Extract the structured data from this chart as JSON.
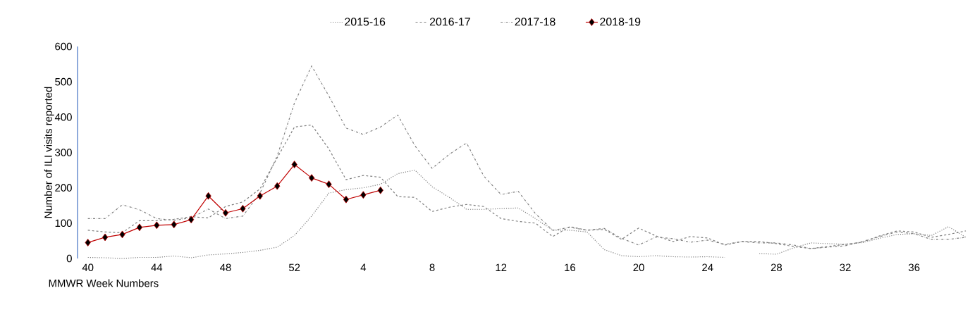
{
  "chart_data": {
    "type": "line",
    "xlabel": "MMWR Week Numbers",
    "ylabel": "Number of ILI visits reported",
    "categories": [
      "40",
      null,
      null,
      null,
      "44",
      null,
      null,
      null,
      "48",
      null,
      null,
      null,
      "52",
      null,
      null,
      null,
      "4",
      null,
      null,
      null,
      "8",
      null,
      null,
      null,
      "12",
      null,
      null,
      null,
      "16",
      null,
      null,
      null,
      "20",
      null,
      null,
      null,
      "24",
      null,
      null,
      null,
      "28",
      null,
      null,
      null,
      "32",
      null,
      null,
      null,
      "36",
      null,
      null,
      null
    ],
    "ylim": [
      0,
      600
    ],
    "yticks": [
      0,
      100,
      200,
      300,
      400,
      500,
      600
    ],
    "grid": false,
    "legend": "top",
    "series": [
      {
        "name": "2015-16",
        "color": "#7f7f7f",
        "line_style": "dotted",
        "marker": "none",
        "values": [
          3,
          2,
          0,
          3,
          3,
          7,
          2,
          10,
          13,
          17,
          23,
          32,
          65,
          120,
          185,
          195,
          200,
          210,
          240,
          250,
          203,
          173,
          139,
          139,
          141,
          143,
          113,
          80,
          80,
          75,
          25,
          8,
          5,
          8,
          5,
          4,
          5,
          3,
          null,
          14,
          12,
          30,
          44,
          42,
          40,
          45,
          57,
          68,
          70,
          65,
          90,
          60
        ]
      },
      {
        "name": "2016-17",
        "color": "#7f7f7f",
        "line_style": "dashed",
        "marker": "none",
        "values": [
          80,
          75,
          73,
          107,
          107,
          111,
          118,
          115,
          147,
          160,
          197,
          285,
          372,
          378,
          310,
          223,
          235,
          230,
          175,
          173,
          133,
          145,
          153,
          147,
          113,
          105,
          100,
          62,
          90,
          80,
          82,
          54,
          86,
          64,
          48,
          62,
          58,
          38,
          48,
          48,
          42,
          34,
          28,
          34,
          40,
          46,
          64,
          78,
          75,
          60,
          68,
          78
        ]
      },
      {
        "name": "2017-18",
        "color": "#7f7f7f",
        "line_style": "dashdot",
        "marker": "none",
        "values": [
          113,
          113,
          152,
          138,
          113,
          108,
          115,
          140,
          113,
          120,
          185,
          290,
          440,
          545,
          460,
          369,
          351,
          372,
          406,
          319,
          255,
          295,
          327,
          233,
          181,
          190,
          127,
          80,
          88,
          80,
          85,
          57,
          38,
          61,
          56,
          46,
          52,
          40,
          48,
          44,
          44,
          38,
          28,
          32,
          36,
          48,
          62,
          75,
          70,
          54,
          54,
          60
        ]
      },
      {
        "name": "2018-19",
        "color": "#c00000",
        "line_style": "solid",
        "marker": "diamond",
        "values": [
          45,
          60,
          68,
          88,
          94,
          96,
          110,
          177,
          129,
          141,
          177,
          205,
          266,
          228,
          210,
          167,
          180,
          193,
          null,
          null,
          null,
          null,
          null,
          null,
          null,
          null,
          null,
          null,
          null,
          null,
          null,
          null,
          null,
          null,
          null,
          null,
          null,
          null,
          null,
          null,
          null,
          null,
          null,
          null,
          null,
          null,
          null,
          null,
          null,
          null,
          null,
          null
        ]
      }
    ]
  }
}
